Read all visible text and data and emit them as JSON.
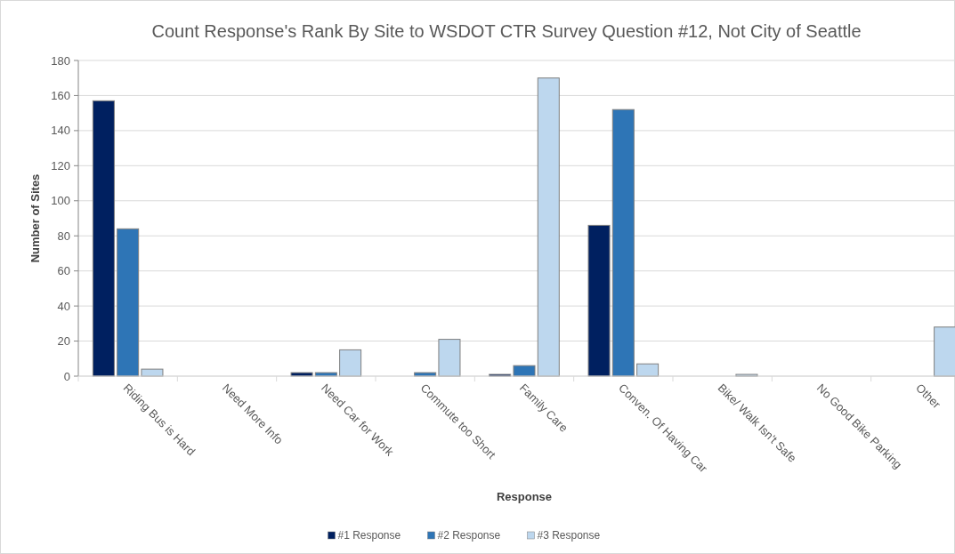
{
  "chart_data": {
    "type": "bar",
    "title": "Count Response's Rank By Site to WSDOT CTR Survey Question #12, Not City of Seattle",
    "xlabel": "Response",
    "ylabel": "Number of Sites",
    "categories": [
      "Riding Bus is Hard",
      "Need More Info",
      "Need Car for Work",
      "Commute too Short",
      "Family Care",
      "Conven. Of Having Car",
      "Bike/ Walk Isn't Safe",
      "No Good Bike Parking",
      "Other"
    ],
    "series": [
      {
        "name": "#1 Response",
        "color": "#002060",
        "values": [
          157,
          0,
          2,
          0,
          1,
          86,
          0,
          0,
          0
        ]
      },
      {
        "name": "#2 Response",
        "color": "#2e75b6",
        "values": [
          84,
          0,
          2,
          2,
          6,
          152,
          0,
          0,
          0
        ]
      },
      {
        "name": "#3 Response",
        "color": "#bdd7ee",
        "values": [
          4,
          0,
          15,
          21,
          170,
          7,
          1,
          0,
          28
        ]
      }
    ],
    "ylim": [
      0,
      180
    ],
    "yticks": [
      0,
      20,
      40,
      60,
      80,
      100,
      120,
      140,
      160,
      180
    ],
    "grid": "y",
    "legend": "bottom"
  }
}
